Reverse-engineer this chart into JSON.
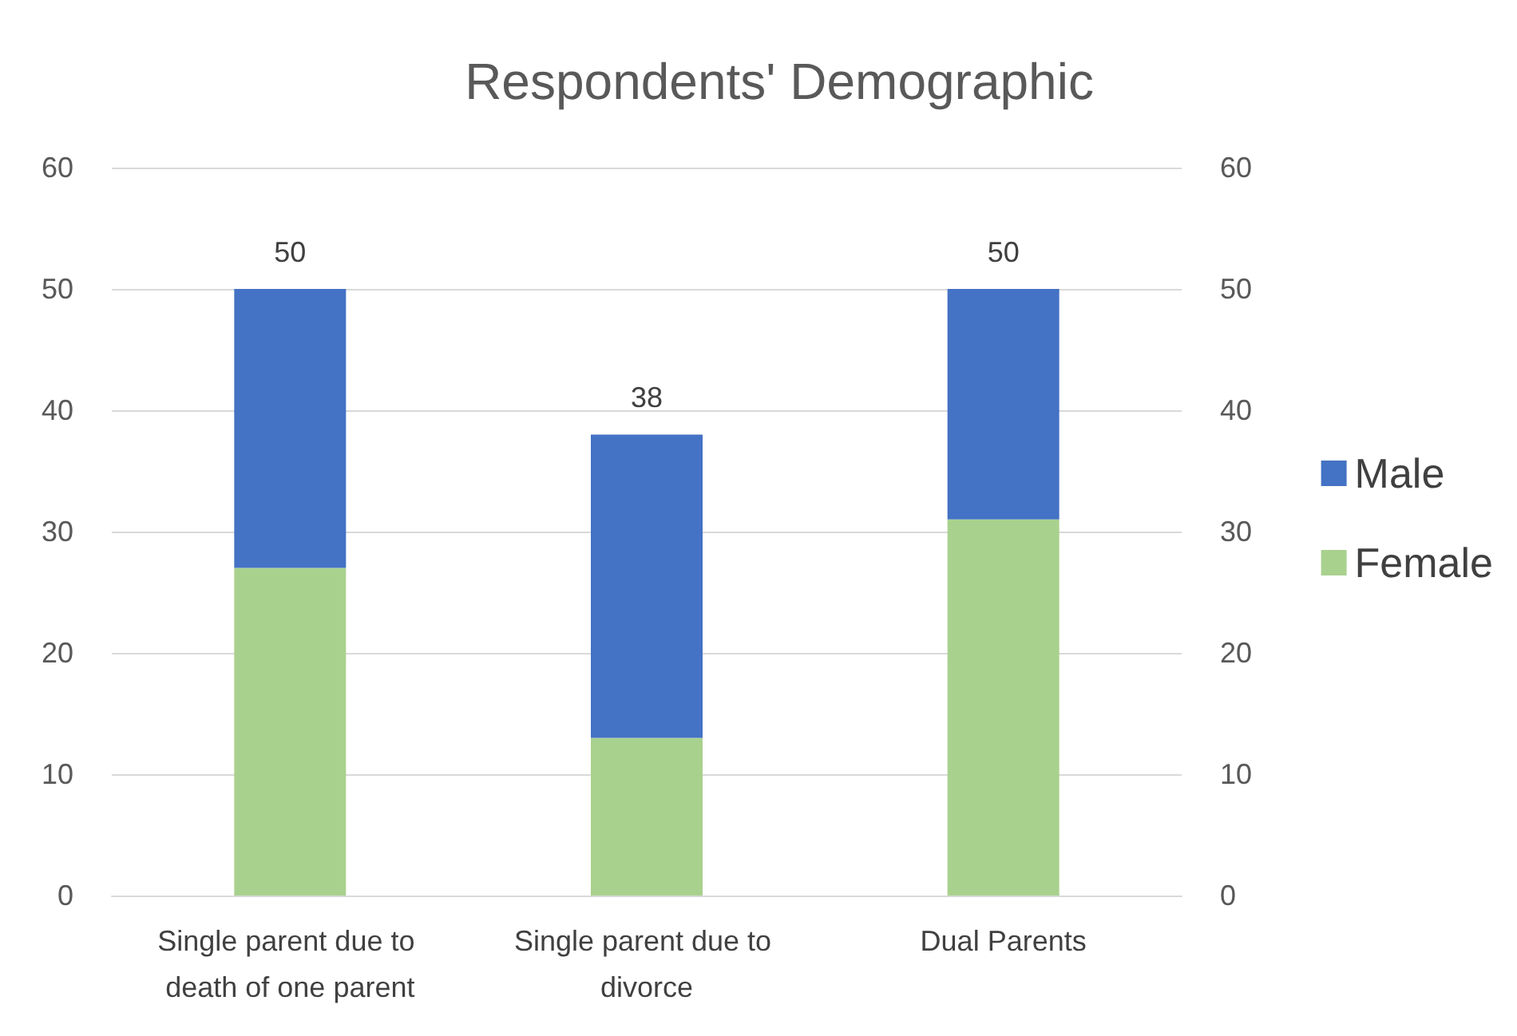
{
  "chart_data": {
    "type": "bar",
    "title": "Respondents' Demographic",
    "stacked": true,
    "categories": [
      "Single parent due to death of one parent",
      "Single parent due to divorce",
      "Dual Parents"
    ],
    "series": [
      {
        "name": "Female",
        "color": "#a9d18e",
        "values": [
          27,
          13,
          31
        ]
      },
      {
        "name": "Male",
        "color": "#4472c4",
        "values": [
          23,
          25,
          19
        ]
      }
    ],
    "totals": [
      "50",
      "38",
      "50"
    ],
    "ylim": [
      0,
      60
    ],
    "yticks": [
      0,
      10,
      20,
      30,
      40,
      50,
      60
    ],
    "y2lim": [
      0,
      60
    ],
    "y2ticks": [
      0,
      10,
      20,
      30,
      40,
      50,
      60
    ],
    "grid": "y",
    "legend": "right"
  }
}
